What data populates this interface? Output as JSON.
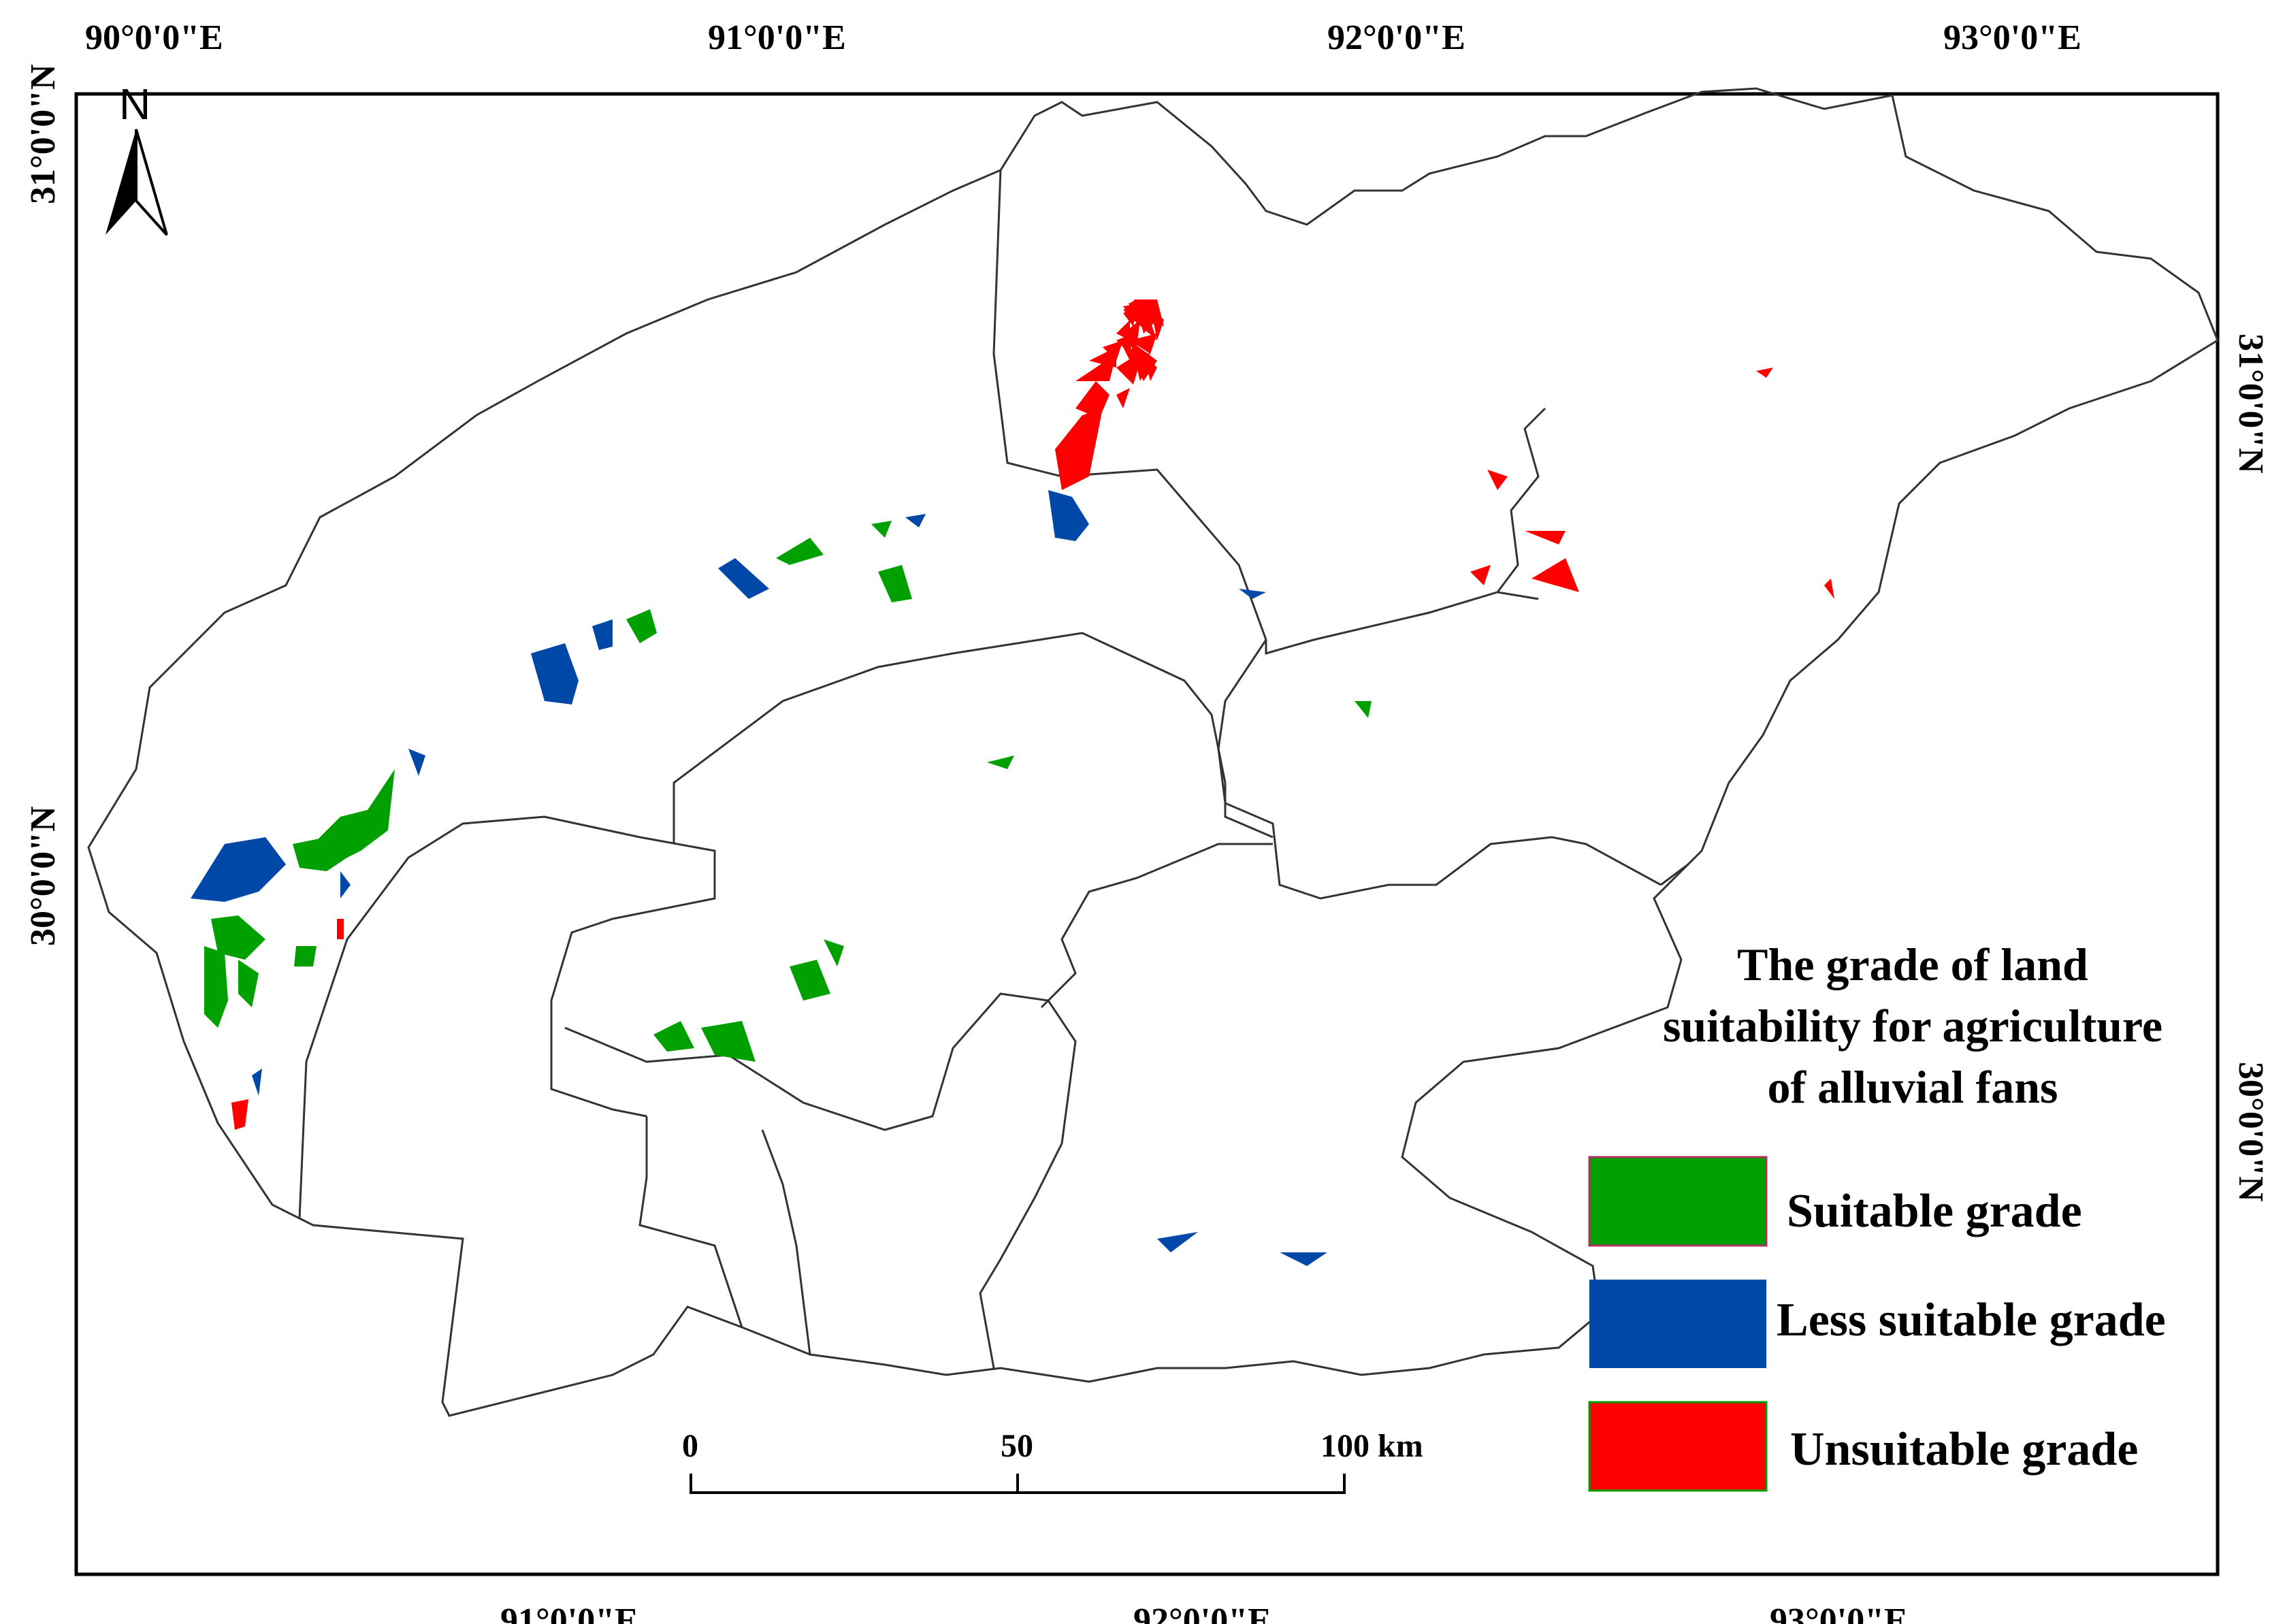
{
  "map": {
    "north_label": "N",
    "top_ticks": [
      "90°0'0\"E",
      "91°0'0\"E",
      "92°0'0\"E",
      "93°0'0\"E"
    ],
    "bottom_ticks": [
      "91°0'0\"E",
      "92°0'0\"E",
      "93°0'0\"E"
    ],
    "left_ticks": [
      "31°0'0\"N",
      "30°0'0\"N"
    ],
    "right_ticks": [
      "31°0'0\"N",
      "30°0'0\"N"
    ],
    "colors": {
      "suitable": "#00a000",
      "less_suitable": "#0048a8",
      "unsuitable": "#ff0000",
      "boundary": "#333333"
    }
  },
  "legend": {
    "title_lines": [
      "The grade of land",
      "suitability for agriculture",
      "of alluvial fans"
    ],
    "items": [
      {
        "label": "Suitable grade",
        "color": "#00a000"
      },
      {
        "label": "Less suitable grade",
        "color": "#0048a8"
      },
      {
        "label": "Unsuitable grade",
        "color": "#ff0000"
      }
    ]
  },
  "scale_bar": {
    "labels": [
      "0",
      "50",
      "100 km"
    ]
  }
}
